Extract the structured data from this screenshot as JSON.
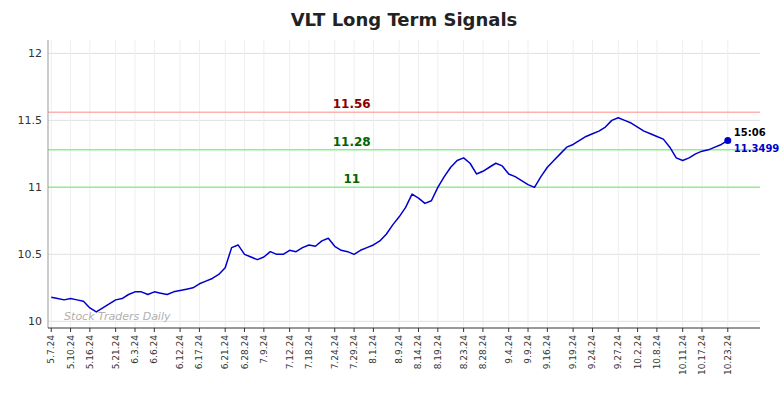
{
  "chart_data": {
    "type": "line",
    "title": "VLT Long Term Signals",
    "watermark": "Stock Traders Daily",
    "ylim": [
      9.95,
      12.1
    ],
    "yticks": [
      10,
      10.5,
      11,
      11.5,
      12
    ],
    "grid": true,
    "color": "#0000cc",
    "categories": [
      "5.7.24",
      null,
      null,
      "5.10.24",
      null,
      null,
      "5.16.24",
      null,
      null,
      null,
      "5.21.24",
      null,
      null,
      "6.3.24",
      null,
      null,
      "6.6.24",
      null,
      null,
      null,
      "6.12.24",
      null,
      null,
      "6.17.24",
      null,
      null,
      null,
      "6.21.24",
      null,
      null,
      "6.28.24",
      null,
      null,
      "7.9.24",
      null,
      null,
      null,
      "7.12.24",
      null,
      null,
      "7.18.24",
      null,
      null,
      null,
      "7.24.24",
      null,
      null,
      "7.29.24",
      null,
      null,
      "8.1.24",
      null,
      null,
      null,
      "8.9.24",
      null,
      null,
      "8.14.24",
      null,
      null,
      "8.19.24",
      null,
      null,
      null,
      "8.23.24",
      null,
      null,
      "8.28.24",
      null,
      null,
      null,
      "9.4.24",
      null,
      null,
      "9.9.24",
      null,
      null,
      "9.16.24",
      null,
      null,
      null,
      "9.19.24",
      null,
      null,
      "9.24.24",
      null,
      null,
      null,
      "9.27.24",
      null,
      null,
      "10.2.24",
      null,
      null,
      "10.8.24",
      null,
      null,
      null,
      "10.11.24",
      null,
      null,
      "10.17.24",
      null,
      null,
      null,
      "10.23.24"
    ],
    "values": [
      10.18,
      10.17,
      10.16,
      10.17,
      10.16,
      10.15,
      10.1,
      10.07,
      10.1,
      10.13,
      10.16,
      10.17,
      10.2,
      10.22,
      10.22,
      10.2,
      10.22,
      10.21,
      10.2,
      10.22,
      10.23,
      10.24,
      10.25,
      10.28,
      10.3,
      10.32,
      10.35,
      10.4,
      10.55,
      10.57,
      10.5,
      10.48,
      10.46,
      10.48,
      10.52,
      10.5,
      10.5,
      10.53,
      10.52,
      10.55,
      10.57,
      10.56,
      10.6,
      10.62,
      10.56,
      10.53,
      10.52,
      10.5,
      10.53,
      10.55,
      10.57,
      10.6,
      10.65,
      10.72,
      10.78,
      10.85,
      10.95,
      10.92,
      10.88,
      10.9,
      11.0,
      11.08,
      11.15,
      11.2,
      11.22,
      11.18,
      11.1,
      11.12,
      11.15,
      11.18,
      11.16,
      11.1,
      11.08,
      11.05,
      11.02,
      11.0,
      11.08,
      11.15,
      11.2,
      11.25,
      11.3,
      11.32,
      11.35,
      11.38,
      11.4,
      11.42,
      11.45,
      11.5,
      11.52,
      11.5,
      11.48,
      11.45,
      11.42,
      11.4,
      11.38,
      11.36,
      11.3,
      11.22,
      11.2,
      11.22,
      11.25,
      11.27,
      11.28,
      11.3,
      11.32,
      11.3499
    ],
    "reference_lines": [
      {
        "value": 11.56,
        "label": "11.56",
        "color": "#ffb0b0",
        "label_color": "#8b0000"
      },
      {
        "value": 11.28,
        "label": "11.28",
        "color": "#90ee90",
        "label_color": "#006400"
      },
      {
        "value": 11,
        "label": "11",
        "color": "#90ee90",
        "label_color": "#006400"
      }
    ],
    "last_point": {
      "time": "15:06",
      "value_label": "11.3499",
      "color": "#0000cc"
    }
  }
}
